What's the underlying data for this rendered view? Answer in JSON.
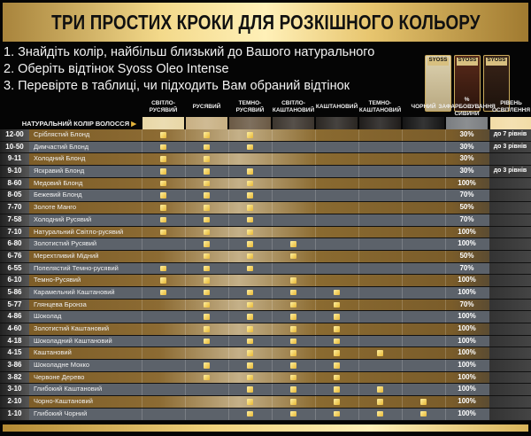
{
  "title": "ТРИ ПРОСТИХ КРОКИ ДЛЯ РОЗКІШНОГО КОЛЬОРУ",
  "steps": [
    "1. Знайдіть колір, найбільш близький до Вашого натурального",
    "2. Оберіть відтінок Syoss Oleo Intense",
    "3. Перевірте в таблиці, чи підходить Вам обраний відтінок"
  ],
  "product_logo": "SYOSS",
  "natural_label": "НАТУРАЛЬНИЙ КОЛІР ВОЛОССЯ",
  "columns": [
    "СВІТЛО-РУСЯВИЙ",
    "РУСЯВИЙ",
    "ТЕМНО-РУСЯВИЙ",
    "СВІТЛО-КАШТАНОВИЙ",
    "КАШТАНОВИЙ",
    "ТЕМНО-КАШТАНОВИЙ",
    "ЧОРНИЙ",
    "% ЗАФАРБОВУВАННЯ СИВИНИ",
    "РІВЕНЬ ОСВІТЛЕННЯ"
  ],
  "swatch_colors": [
    "#e8d7a6",
    "#c8b083",
    "#6b5a45",
    "#3c352e",
    "#2a2622",
    "#201d1b",
    "#151515",
    "#7a7d80",
    "#f2dca6"
  ],
  "check_color": "#e7b735",
  "rows": [
    {
      "code": "12-00",
      "name": "Сріблястий Блонд",
      "checks": [
        1,
        2,
        3
      ],
      "grey": "30%",
      "level": "до 7 рівнів"
    },
    {
      "code": "10-50",
      "name": "Димчастий Блонд",
      "checks": [
        1,
        2,
        3
      ],
      "grey": "30%",
      "level": "до 3 рівнів"
    },
    {
      "code": "9-11",
      "name": "Холодний Блонд",
      "checks": [
        1,
        2
      ],
      "grey": "30%",
      "level": ""
    },
    {
      "code": "9-10",
      "name": "Яскравий Блонд",
      "checks": [
        1,
        2,
        3
      ],
      "grey": "30%",
      "level": "до 3 рівнів"
    },
    {
      "code": "8-60",
      "name": "Медовий Блонд",
      "checks": [
        1,
        2,
        3
      ],
      "grey": "100%",
      "level": ""
    },
    {
      "code": "8-05",
      "name": "Бежевий Блонд",
      "checks": [
        1,
        2,
        3
      ],
      "grey": "70%",
      "level": ""
    },
    {
      "code": "7-70",
      "name": "Золоте Манго",
      "checks": [
        1,
        2,
        3
      ],
      "grey": "50%",
      "level": ""
    },
    {
      "code": "7-58",
      "name": "Холодний Русявий",
      "checks": [
        1,
        2,
        3
      ],
      "grey": "70%",
      "level": ""
    },
    {
      "code": "7-10",
      "name": "Натуральний Світло-русявий",
      "checks": [
        1,
        2,
        3
      ],
      "grey": "100%",
      "level": ""
    },
    {
      "code": "6-80",
      "name": "Золотистий Русявий",
      "checks": [
        2,
        3,
        4
      ],
      "grey": "100%",
      "level": ""
    },
    {
      "code": "6-76",
      "name": "Мерехтливий Мідний",
      "checks": [
        2,
        3,
        4
      ],
      "grey": "50%",
      "level": ""
    },
    {
      "code": "6-55",
      "name": "Попелястий Темно-русявий",
      "checks": [
        1,
        2,
        3
      ],
      "grey": "70%",
      "level": ""
    },
    {
      "code": "6-10",
      "name": "Темно-Русявий",
      "checks": [
        1,
        2,
        4
      ],
      "grey": "100%",
      "level": ""
    },
    {
      "code": "5-86",
      "name": "Карамельний Каштановий",
      "checks": [
        1,
        2,
        3,
        4,
        5
      ],
      "grey": "100%",
      "level": ""
    },
    {
      "code": "5-77",
      "name": "Глянцева Бронза",
      "checks": [
        2,
        3,
        4,
        5
      ],
      "grey": "70%",
      "level": ""
    },
    {
      "code": "4-86",
      "name": "Шоколад",
      "checks": [
        2,
        3,
        4,
        5
      ],
      "grey": "100%",
      "level": ""
    },
    {
      "code": "4-60",
      "name": "Золотистий Каштановий",
      "checks": [
        2,
        3,
        4,
        5
      ],
      "grey": "100%",
      "level": ""
    },
    {
      "code": "4-18",
      "name": "Шоколадний Каштановий",
      "checks": [
        2,
        3,
        4,
        5
      ],
      "grey": "100%",
      "level": ""
    },
    {
      "code": "4-15",
      "name": "Каштановий",
      "checks": [
        3,
        4,
        5,
        6
      ],
      "grey": "100%",
      "level": ""
    },
    {
      "code": "3-86",
      "name": "Шоколадне Мокко",
      "checks": [
        2,
        3,
        4,
        5
      ],
      "grey": "100%",
      "level": ""
    },
    {
      "code": "3-82",
      "name": "Червоне Дерево",
      "checks": [
        2,
        3,
        4,
        5
      ],
      "grey": "100%",
      "level": ""
    },
    {
      "code": "3-10",
      "name": "Глибокий Каштановий",
      "checks": [
        3,
        4,
        5,
        6
      ],
      "grey": "100%",
      "level": ""
    },
    {
      "code": "2-10",
      "name": "Чорно-Каштановий",
      "checks": [
        3,
        4,
        5,
        6,
        7
      ],
      "grey": "100%",
      "level": ""
    },
    {
      "code": "1-10",
      "name": "Глибокий Чорний",
      "checks": [
        3,
        4,
        5,
        6,
        7
      ],
      "grey": "100%",
      "level": ""
    }
  ]
}
